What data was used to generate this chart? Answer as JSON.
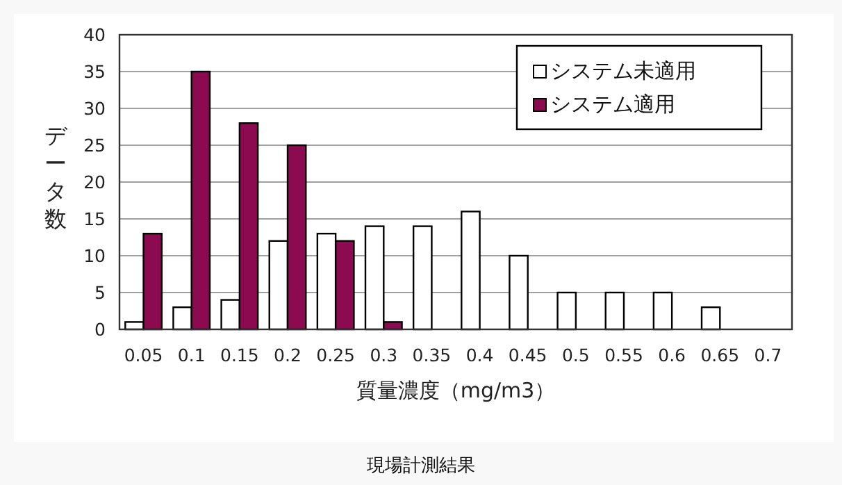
{
  "chart_data": {
    "type": "bar",
    "xlabel": "質量濃度（mg/m3）",
    "ylabel": "データ数",
    "categories": [
      "0.05",
      "0.1",
      "0.15",
      "0.2",
      "0.25",
      "0.3",
      "0.35",
      "0.4",
      "0.45",
      "0.5",
      "0.55",
      "0.6",
      "0.65",
      "0.7"
    ],
    "series": [
      {
        "name": "システム未適用",
        "color": "#ffffff",
        "values": [
          1,
          3,
          4,
          12,
          13,
          14,
          14,
          16,
          10,
          5,
          5,
          5,
          3,
          0
        ]
      },
      {
        "name": "システム適用",
        "color": "#8b0a50",
        "values": [
          13,
          35,
          28,
          25,
          12,
          1,
          0,
          0,
          0,
          0,
          0,
          0,
          0,
          0
        ]
      }
    ],
    "ylim": [
      0,
      40
    ],
    "yticks": [
      0,
      5,
      10,
      15,
      20,
      25,
      30,
      35,
      40
    ],
    "grid": "y",
    "legend": "top right",
    "annotations": [
      "現場計測結果"
    ]
  }
}
